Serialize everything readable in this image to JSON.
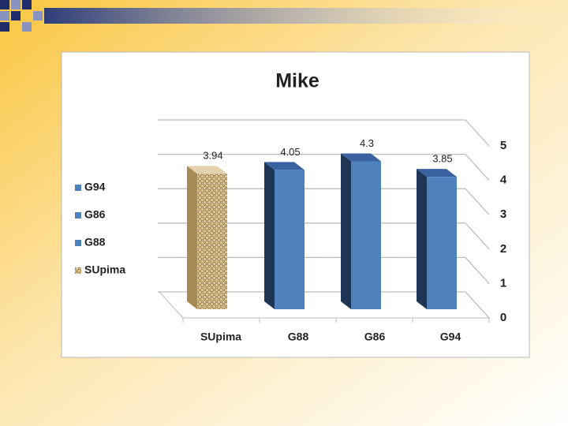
{
  "chart_data": {
    "type": "bar3d",
    "title": "Mike",
    "categories": [
      "SUpima",
      "G88",
      "G86",
      "G94"
    ],
    "values": [
      3.94,
      4.05,
      4.3,
      3.85
    ],
    "colors": [
      "#c9b083",
      "#4f81bd",
      "#4f81bd",
      "#4f81bd"
    ],
    "ylim": [
      0,
      5
    ],
    "yticks": [
      0,
      1,
      2,
      3,
      4,
      5
    ],
    "grid": true,
    "legend": "left"
  }
}
